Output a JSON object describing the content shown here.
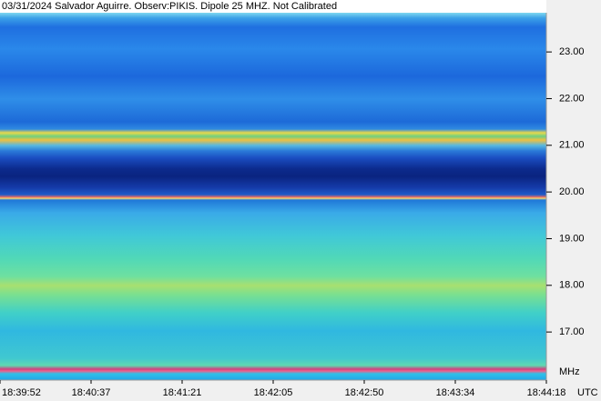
{
  "chart_data": {
    "type": "spectrogram",
    "title": "03/31/2024 Salvador Aguirre. Observ:PIKIS. Dipole 25 MHZ. Not Calibrated",
    "categories": [
      "18:39:52",
      "18:40:37",
      "18:41:21",
      "18:42:05",
      "18:42:50",
      "18:43:34",
      "18:44:18"
    ],
    "x_unit": "UTC",
    "y_unit": "MHz",
    "ylim": [
      15.97,
      23.84
    ],
    "yticks": [
      {
        "value": 17,
        "label": "17.00"
      },
      {
        "value": 18,
        "label": "18.00"
      },
      {
        "value": 19,
        "label": "19.00"
      },
      {
        "value": 20,
        "label": "20.00"
      },
      {
        "value": 21,
        "label": "21.00"
      },
      {
        "value": 22,
        "label": "22.00"
      },
      {
        "value": 23,
        "label": "23.00"
      }
    ]
  }
}
